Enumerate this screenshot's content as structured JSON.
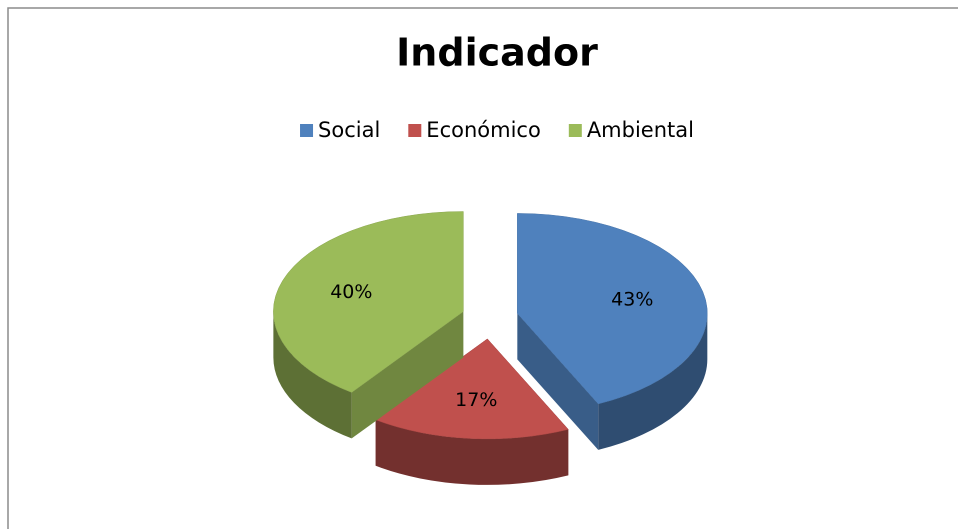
{
  "chart_data": {
    "type": "pie",
    "title": "Indicador",
    "categories": [
      "Social",
      "Económico",
      "Ambiental"
    ],
    "values": [
      43,
      17,
      40
    ],
    "value_labels": [
      "43%",
      "17%",
      "40%"
    ],
    "colors": [
      "#4f81bd",
      "#c0504d",
      "#9bbb59"
    ],
    "legend": "top"
  }
}
